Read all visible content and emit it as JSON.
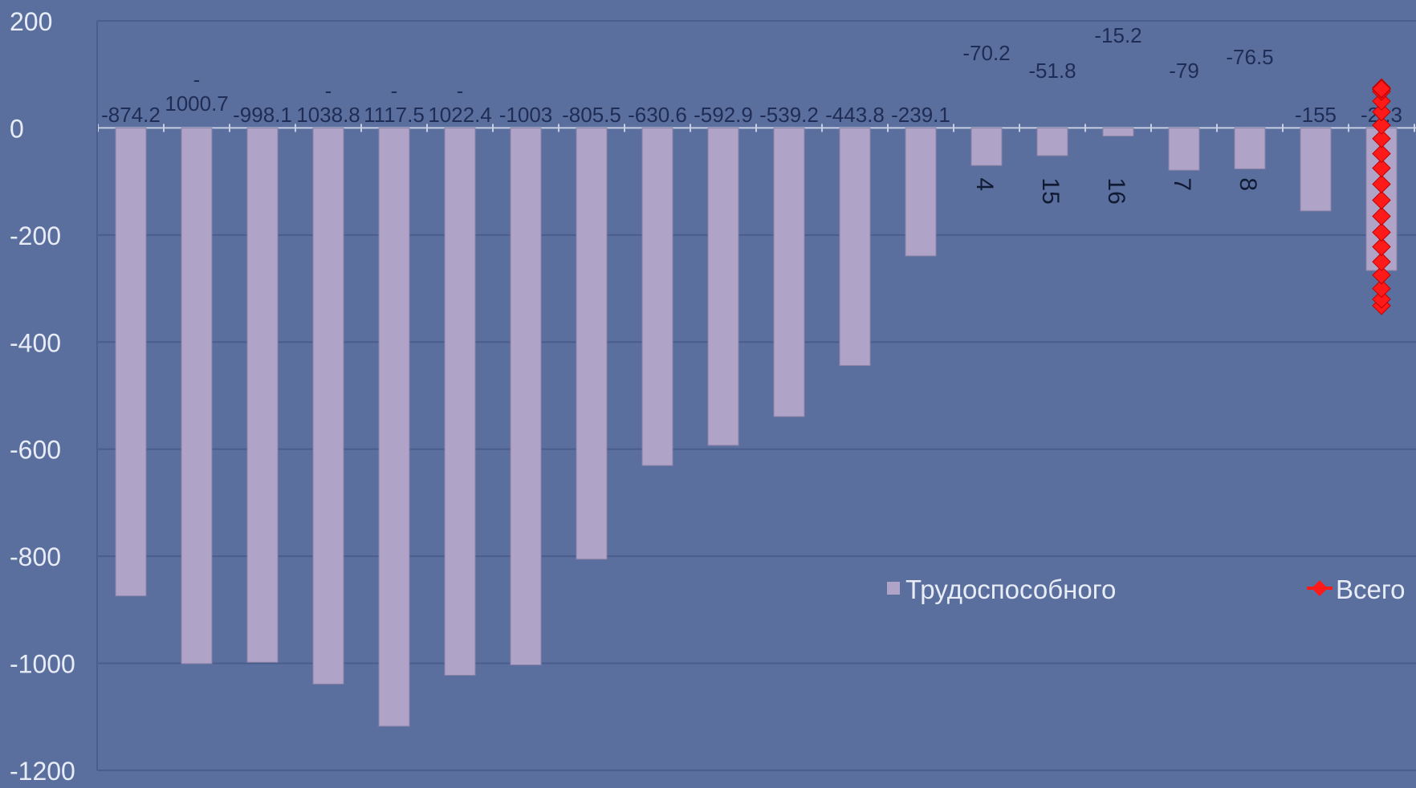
{
  "chart_data": {
    "type": "bar",
    "ylim": [
      -1200,
      200
    ],
    "yticks": [
      200,
      0,
      -200,
      -400,
      -600,
      -800,
      -1000,
      -1200
    ],
    "grid": true,
    "legend_position": "lower-right",
    "colors": {
      "background": "#5a6f9e",
      "bar": "#b0a3c8",
      "series2": "#ff1a1a",
      "grid": "#4a5d8c",
      "text": "#e8ecf6"
    },
    "series": [
      {
        "name": "Трудоспособного",
        "values": [
          -874.2,
          -1000.7,
          -998.1,
          -1038.8,
          -1117.5,
          -1022.4,
          -1003,
          -805.5,
          -630.6,
          -592.9,
          -539.2,
          -443.8,
          -239.1,
          -70.2,
          -51.8,
          -15.2,
          -79,
          -76.5,
          -155,
          -266.3
        ],
        "labels": [
          "-874.2",
          "1000.7",
          "-998.1",
          "1038.8",
          "1117.5",
          "1022.4",
          "-1003",
          "-805.5",
          "-630.6",
          "-592.9",
          "-539.2",
          "-443.8",
          "-239.1",
          "-70.2",
          "-51.8",
          "-15.2",
          "-79",
          "-76.5",
          "-155",
          "-2  .3"
        ]
      },
      {
        "name": "Всего",
        "values": [
          -332,
          -320,
          -300,
          -275,
          -250,
          -222,
          -195,
          -165,
          -135,
          -105,
          -75,
          -48,
          -20,
          5,
          30,
          50,
          68,
          72,
          75,
          73
        ]
      }
    ],
    "category_fragments": [
      {
        "index": 13,
        "text": "4"
      },
      {
        "index": 14,
        "text": "15"
      },
      {
        "index": 15,
        "text": "16"
      },
      {
        "index": 16,
        "text": "7"
      },
      {
        "index": 17,
        "text": "8"
      }
    ]
  }
}
